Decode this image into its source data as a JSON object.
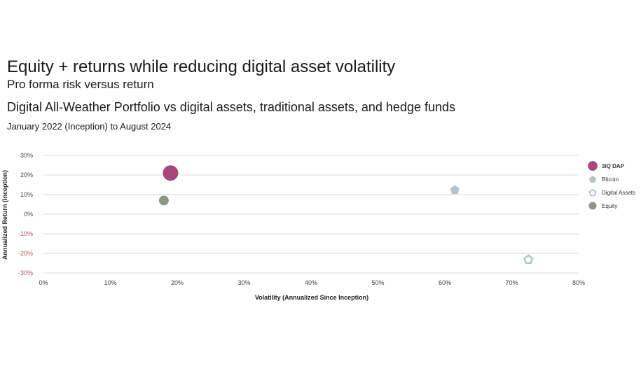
{
  "header": {
    "title": "Equity + returns while reducing digital asset volatility",
    "subtitle": "Pro forma risk versus return",
    "heading": "Digital All-Weather Portfolio vs digital assets, traditional assets, and hedge funds",
    "period": "January 2022 (Inception) to August 2024"
  },
  "chart_data": {
    "type": "scatter",
    "xlabel": "Volatility (Annualized Since Inception)",
    "ylabel": "Annualized Return (Inception)",
    "xlim": [
      0,
      80
    ],
    "ylim": [
      -30,
      30
    ],
    "x_ticks": [
      "0%",
      "10%",
      "20%",
      "30%",
      "40%",
      "50%",
      "60%",
      "70%",
      "80%"
    ],
    "y_ticks": [
      "30%",
      "20%",
      "10%",
      "0%",
      "-10%",
      "-20%",
      "-30%"
    ],
    "grid": "horizontal",
    "legend": "right",
    "series": [
      {
        "name": "3iQ DAP",
        "x": 19,
        "y": 21,
        "marker": "circle-large",
        "color": "#a8457a"
      },
      {
        "name": "Bitcoin",
        "x": 61.5,
        "y": 12.5,
        "marker": "pentagon-filled",
        "color": "#b4c4cc"
      },
      {
        "name": "Digital Assets",
        "x": 72.5,
        "y": -23,
        "marker": "pentagon-outline",
        "color": "#b4c4cc"
      },
      {
        "name": "Equity",
        "x": 18,
        "y": 7,
        "marker": "circle",
        "color": "#8f9585"
      }
    ],
    "colors": {
      "negative_tick": "#b5505e",
      "positive_tick": "#444444",
      "gridline": "#d9d9d9"
    }
  }
}
